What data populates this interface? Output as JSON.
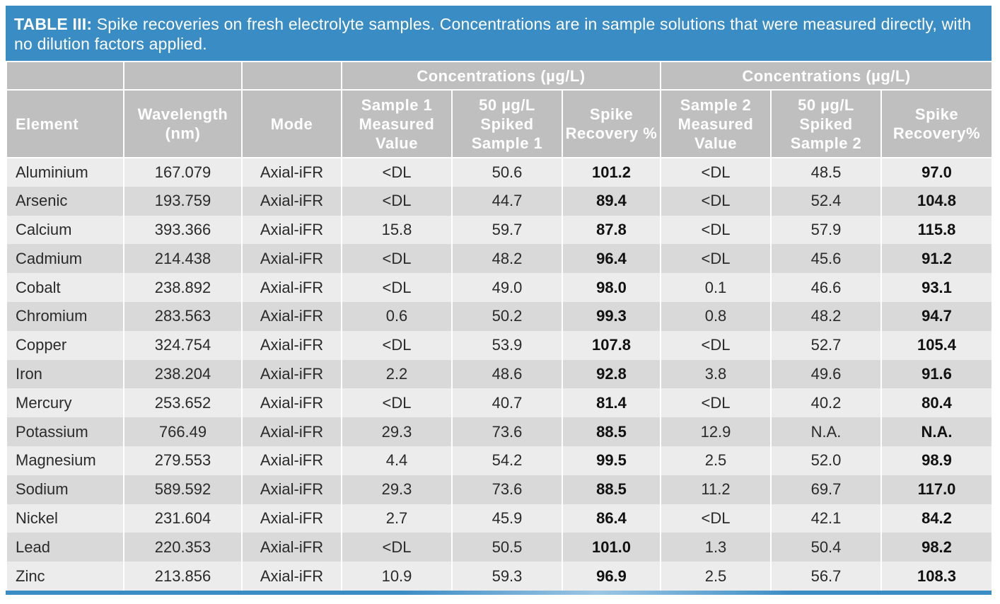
{
  "caption": {
    "label": "TABLE III:",
    "text": " Spike recoveries on fresh electrolyte samples. Concentrations are in sample solutions that were measured directly, with no dilution factors applied."
  },
  "header": {
    "group1": "Concentrations (µg/L)",
    "group2": "Concentrations (µg/L)",
    "columns": {
      "element": "Element",
      "wavelength": "Wavelength (nm)",
      "mode": "Mode",
      "s1_measured": "Sample 1 Measured Value",
      "s1_spiked": "50 µg/L Spiked Sample 1",
      "s1_recovery": "Spike Recovery %",
      "s2_measured": "Sample 2 Measured Value",
      "s2_spiked": "50 µg/L Spiked Sample 2",
      "s2_recovery": "Spike Recovery%"
    }
  },
  "rows": [
    [
      "Aluminium",
      "167.079",
      "Axial-iFR",
      "<DL",
      "50.6",
      "101.2",
      "<DL",
      "48.5",
      "97.0"
    ],
    [
      "Arsenic",
      "193.759",
      "Axial-iFR",
      "<DL",
      "44.7",
      "89.4",
      "<DL",
      "52.4",
      "104.8"
    ],
    [
      "Calcium",
      "393.366",
      "Axial-iFR",
      "15.8",
      "59.7",
      "87.8",
      "<DL",
      "57.9",
      "115.8"
    ],
    [
      "Cadmium",
      "214.438",
      "Axial-iFR",
      "<DL",
      "48.2",
      "96.4",
      "<DL",
      "45.6",
      "91.2"
    ],
    [
      "Cobalt",
      "238.892",
      "Axial-iFR",
      "<DL",
      "49.0",
      "98.0",
      "0.1",
      "46.6",
      "93.1"
    ],
    [
      "Chromium",
      "283.563",
      "Axial-iFR",
      "0.6",
      "50.2",
      "99.3",
      "0.8",
      "48.2",
      "94.7"
    ],
    [
      "Copper",
      "324.754",
      "Axial-iFR",
      "<DL",
      "53.9",
      "107.8",
      "<DL",
      "52.7",
      "105.4"
    ],
    [
      "Iron",
      "238.204",
      "Axial-iFR",
      "2.2",
      "48.6",
      "92.8",
      "3.8",
      "49.6",
      "91.6"
    ],
    [
      "Mercury",
      "253.652",
      "Axial-iFR",
      "<DL",
      "40.7",
      "81.4",
      "<DL",
      "40.2",
      "80.4"
    ],
    [
      "Potassium",
      "766.49",
      "Axial-iFR",
      "29.3",
      "73.6",
      "88.5",
      "12.9",
      "N.A.",
      "N.A."
    ],
    [
      "Magnesium",
      "279.553",
      "Axial-iFR",
      "4.4",
      "54.2",
      "99.5",
      "2.5",
      "52.0",
      "98.9"
    ],
    [
      "Sodium",
      "589.592",
      "Axial-iFR",
      "29.3",
      "73.6",
      "88.5",
      "11.2",
      "69.7",
      "117.0"
    ],
    [
      "Nickel",
      "231.604",
      "Axial-iFR",
      "2.7",
      "45.9",
      "86.4",
      "<DL",
      "42.1",
      "84.2"
    ],
    [
      "Lead",
      "220.353",
      "Axial-iFR",
      "<DL",
      "50.5",
      "101.0",
      "1.3",
      "50.4",
      "98.2"
    ],
    [
      "Zinc",
      "213.856",
      "Axial-iFR",
      "10.9",
      "59.3",
      "96.9",
      "2.5",
      "56.7",
      "108.3"
    ]
  ]
}
